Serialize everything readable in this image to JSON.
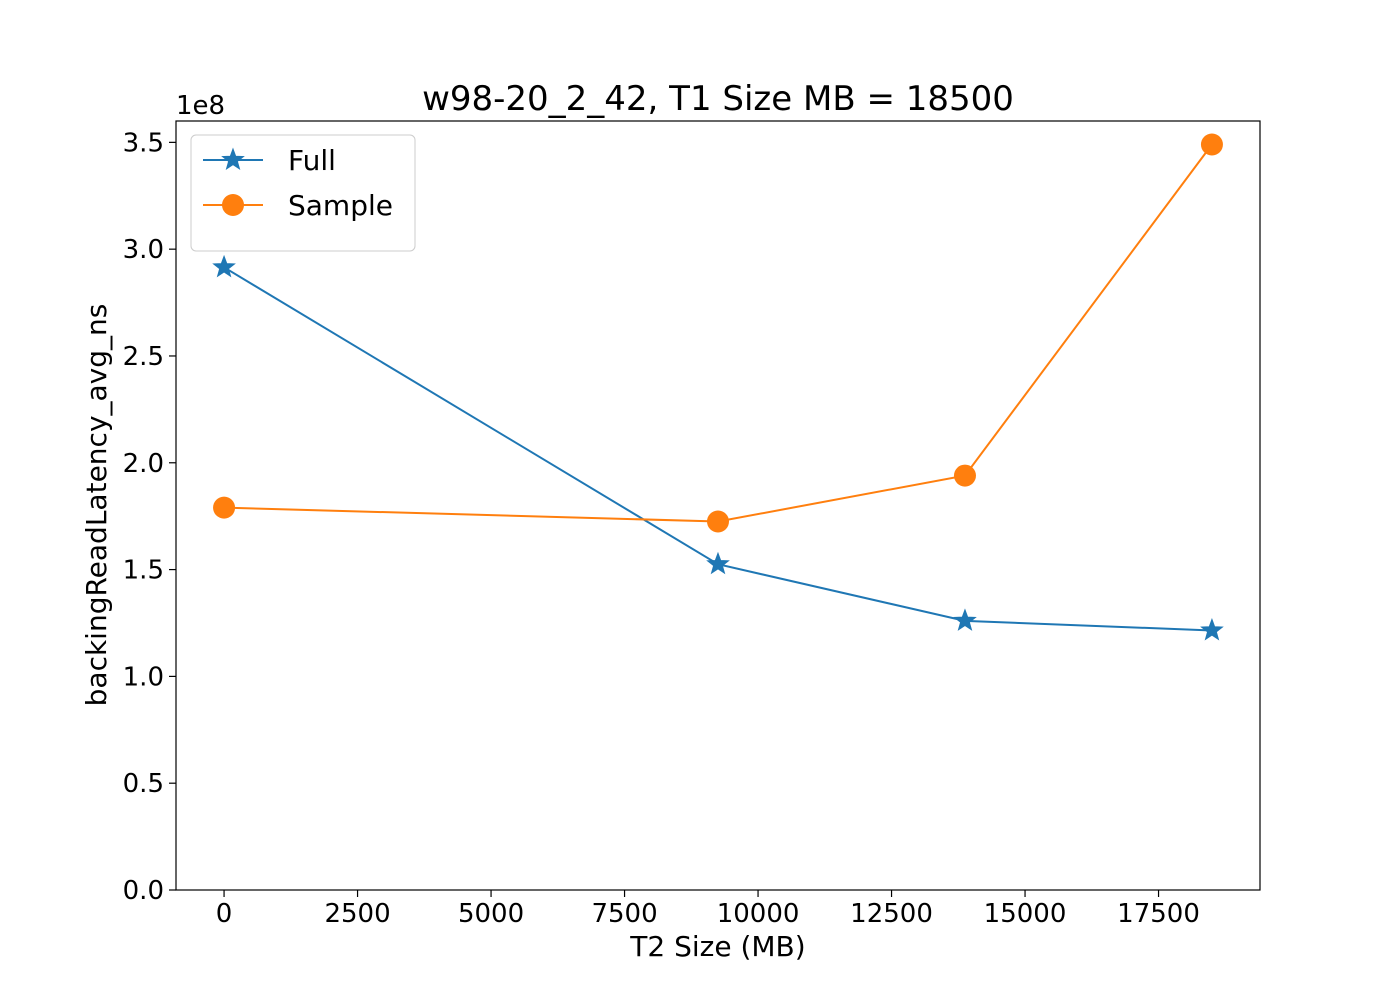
{
  "chart_data": {
    "type": "line",
    "title": "w98-20_2_42, T1 Size MB = 18500",
    "xlabel": "T2 Size (MB)",
    "ylabel": "backingReadLatency_avg_ns",
    "y_offset_label": "1e8",
    "y_scale": 100000000,
    "xlim": [
      -900,
      19400
    ],
    "ylim": [
      0,
      360000000
    ],
    "x_ticks": [
      0,
      2500,
      5000,
      7500,
      10000,
      12500,
      15000,
      17500
    ],
    "x_tick_labels": [
      "0",
      "2500",
      "5000",
      "7500",
      "10000",
      "12500",
      "15000",
      "17500"
    ],
    "y_ticks": [
      0,
      50000000,
      100000000,
      150000000,
      200000000,
      250000000,
      300000000,
      350000000
    ],
    "y_tick_labels": [
      "0.0",
      "0.5",
      "1.0",
      "1.5",
      "2.0",
      "2.5",
      "3.0",
      "3.5"
    ],
    "grid": false,
    "legend_position": "top-left",
    "series": [
      {
        "name": "Full",
        "color": "#1f77b4",
        "marker": "star",
        "x": [
          0,
          9250,
          13875,
          18500
        ],
        "y": [
          291500000,
          152500000,
          126000000,
          121500000
        ]
      },
      {
        "name": "Sample",
        "color": "#ff7f0e",
        "marker": "circle",
        "x": [
          0,
          9250,
          13875,
          18500
        ],
        "y": [
          179000000,
          172500000,
          194000000,
          349000000
        ]
      }
    ]
  }
}
